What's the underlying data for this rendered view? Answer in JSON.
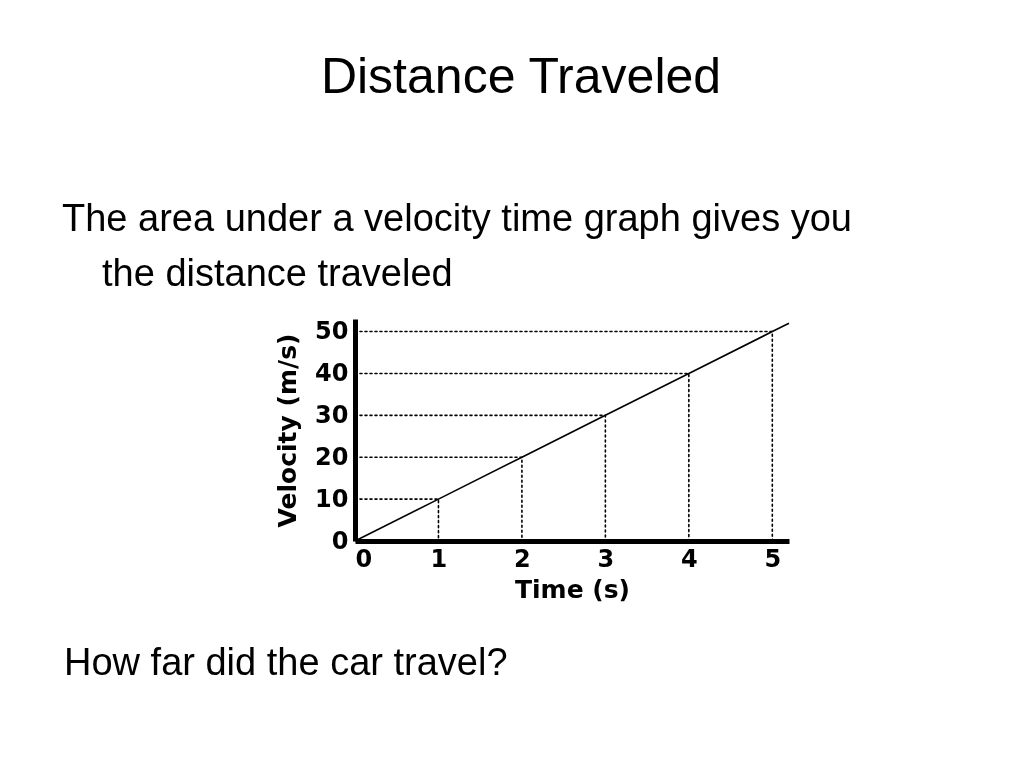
{
  "chart_data": {
    "type": "line",
    "title": "Distance Traveled",
    "subtitle": "The area under a velocity time graph gives you the distance traveled",
    "xlabel": "Time (s)",
    "ylabel": "Velocity (m/s)",
    "annotations": [
      "How far did the car travel?"
    ],
    "xlim": [
      0,
      5.2
    ],
    "ylim": [
      0,
      53
    ],
    "xticks": [
      0,
      1,
      2,
      3,
      4,
      5
    ],
    "yticks": [
      0,
      10,
      20,
      30,
      40,
      50
    ],
    "series": [
      {
        "color": "#000000",
        "line_style": "solid",
        "x": [
          0,
          1,
          2,
          3,
          4,
          5,
          5.2
        ],
        "values": [
          0,
          10,
          20,
          30,
          40,
          50,
          52
        ]
      },
      {
        "color": "#000000",
        "line_style": "dotted",
        "x": [
          0,
          1,
          1
        ],
        "values": [
          10,
          10,
          0
        ]
      },
      {
        "color": "#000000",
        "line_style": "dotted",
        "x": [
          0,
          2,
          2
        ],
        "values": [
          20,
          20,
          0
        ]
      },
      {
        "color": "#000000",
        "line_style": "dotted",
        "x": [
          0,
          3,
          3
        ],
        "values": [
          30,
          30,
          0
        ]
      },
      {
        "color": "#000000",
        "line_style": "dotted",
        "x": [
          0,
          4,
          4
        ],
        "values": [
          40,
          40,
          0
        ]
      },
      {
        "color": "#000000",
        "line_style": "dotted",
        "x": [
          0,
          5,
          5
        ],
        "values": [
          50,
          50,
          0
        ]
      }
    ]
  }
}
